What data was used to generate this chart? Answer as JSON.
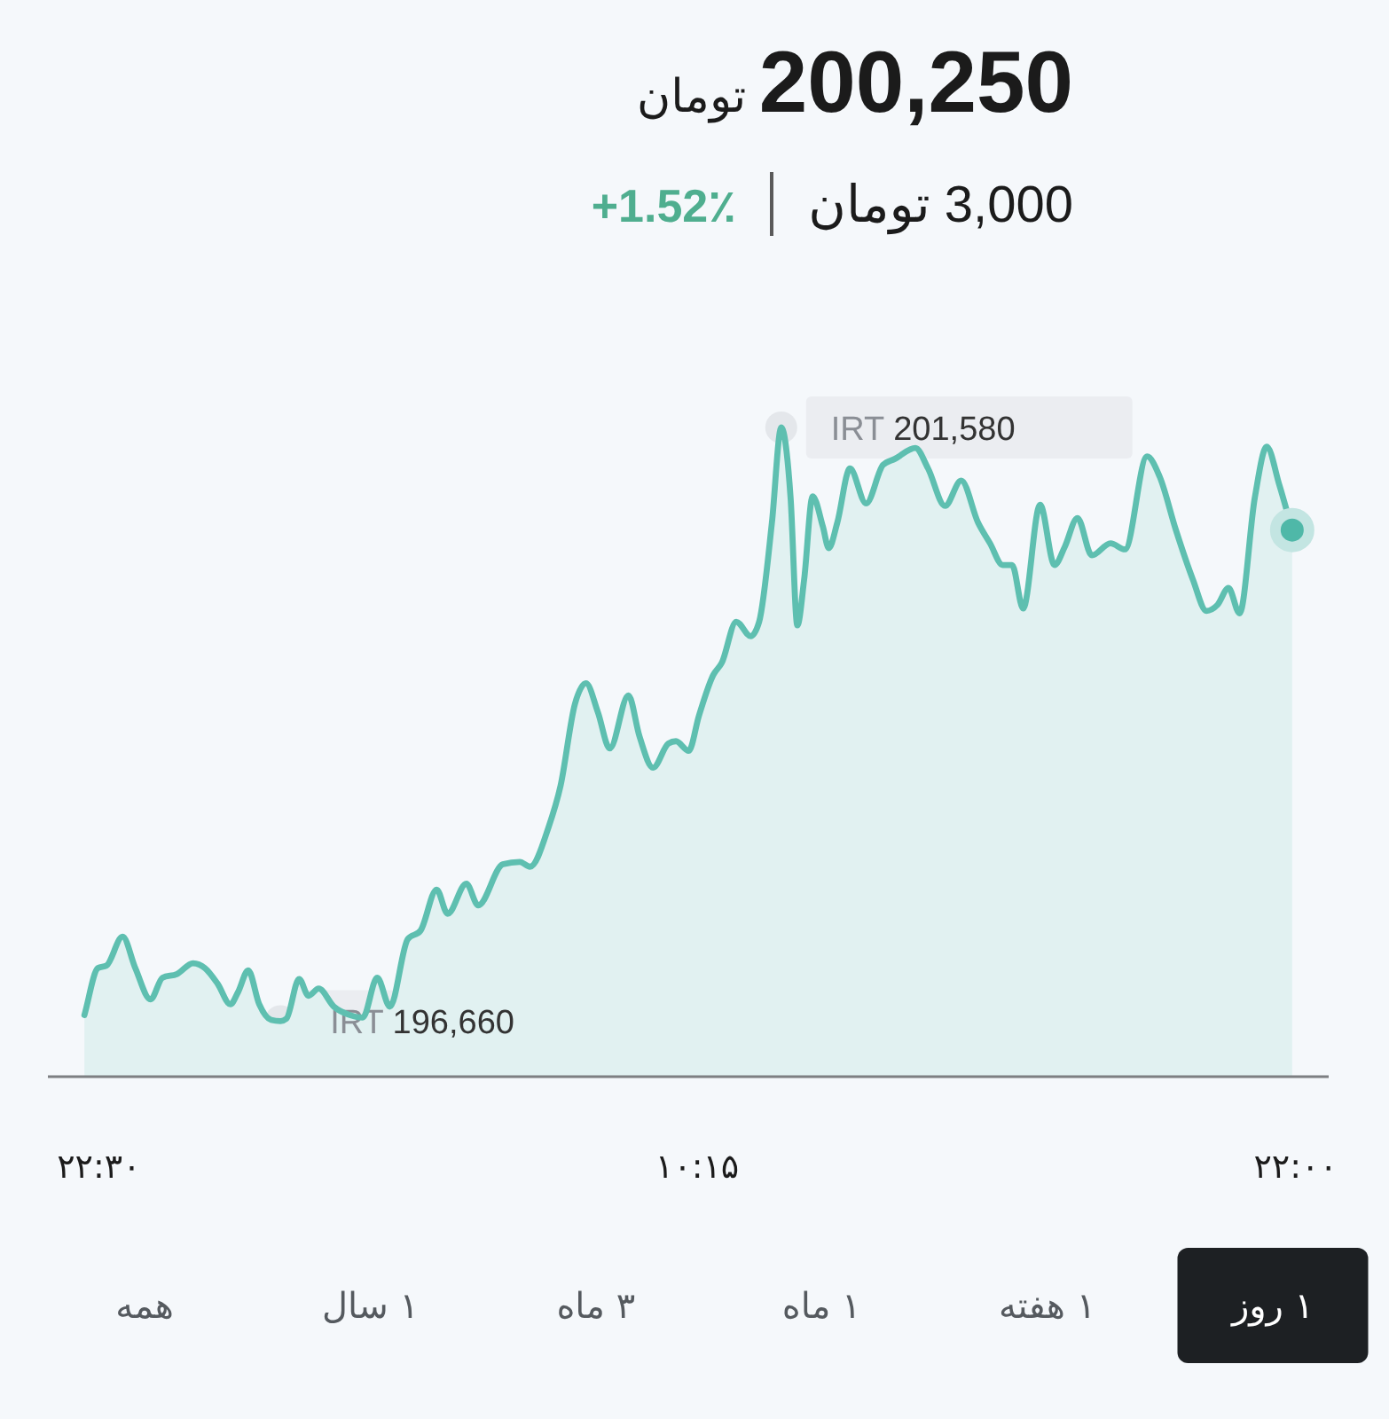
{
  "chart_data": {
    "type": "area",
    "title": "**200,250** تومان",
    "subtitle": "3,000 تومان",
    "x": [
      "--01-01T22:13",
      "--01-01T22:29",
      "--01-01T22:39",
      "--01-01T22:58",
      "--01-01T23:13",
      "--01-01T23:31",
      "--01-01T23:45",
      "--01-02T00:02",
      "--01-02T00:21",
      "--01-02T00:35",
      "--01-02T00:50",
      "--01-02T01:05",
      "--01-02T01:14",
      "--01-02T01:26",
      "--01-02T01:39",
      "--01-02T01:53",
      "--01-02T02:04",
      "--01-02T02:11",
      "--01-02T02:26",
      "--01-02T02:37",
      "--01-02T02:49",
      "--01-02T03:07",
      "--01-02T03:26",
      "--01-02T03:41",
      "--01-02T03:58",
      "--01-02T04:13",
      "--01-02T04:34",
      "--01-02T04:49",
      "--01-02T05:08",
      "--01-02T05:21",
      "--01-02T05:43",
      "--01-02T05:57",
      "--01-02T06:26",
      "--01-02T06:46",
      "--01-02T06:58",
      "--01-02T07:20",
      "--01-02T07:34",
      "--01-02T07:51",
      "--01-02T08:04",
      "--01-02T08:18",
      "--01-02T08:32",
      "--01-02T08:54",
      "--01-02T09:07",
      "--01-02T09:23",
      "--01-02T09:41",
      "--01-02T09:50",
      "--01-02T10:05",
      "--01-02T10:17",
      "--01-02T10:34",
      "--01-02T10:44",
      "--01-02T11:01",
      "--01-02T11:18",
      "--01-02T11:28",
      "--01-02T11:43",
      "--01-02T11:54",
      "--01-02T12:05",
      "--01-02T12:13",
      "--01-02T12:21",
      "--01-02T12:31",
      "--01-02T12:43",
      "--01-02T12:50",
      "--01-02T13:00",
      "--01-02T13:15",
      "--01-02T13:34",
      "--01-02T13:54",
      "--01-02T14:08",
      "--01-02T14:32",
      "--01-02T14:47",
      "--01-02T15:07",
      "--01-02T15:26",
      "--01-02T15:46",
      "--01-02T16:00",
      "--01-02T16:15",
      "--01-02T16:26",
      "--01-02T16:39",
      "--01-02T16:59",
      "--01-02T17:16",
      "--01-02T17:28",
      "--01-02T17:43",
      "--01-02T18:00",
      "--01-02T18:22",
      "--01-02T18:39",
      "--01-02T19:05",
      "--01-02T19:20",
      "--01-02T19:39",
      "--01-02T19:59",
      "--01-02T20:15",
      "--01-02T20:28",
      "--01-02T20:41",
      "--01-02T20:54",
      "--01-02T21:12",
      "--01-02T21:26",
      "--01-02T21:41",
      "--01-02T21:56"
    ],
    "series": [
      {
        "color": "#5ebfb0",
        "values": [
          196710,
          197100,
          197120,
          197360,
          197100,
          196840,
          197020,
          197050,
          197140,
          197100,
          196970,
          196800,
          196900,
          197080,
          196800,
          196670,
          196660,
          196680,
          197010,
          196870,
          196930,
          196780,
          196710,
          196690,
          197020,
          196780,
          197340,
          197410,
          197750,
          197550,
          197800,
          197620,
          197960,
          197980,
          197940,
          198270,
          198610,
          199290,
          199460,
          199220,
          198920,
          199360,
          199020,
          198760,
          198960,
          198980,
          198900,
          199190,
          199530,
          199630,
          199970,
          199850,
          199970,
          200790,
          201580,
          201000,
          199940,
          200320,
          201010,
          200760,
          200580,
          200790,
          201240,
          200950,
          201270,
          201320,
          201410,
          201240,
          200930,
          201140,
          200790,
          200620,
          200440,
          200440,
          200080,
          200940,
          200440,
          200590,
          200830,
          200520,
          200620,
          200570,
          201340,
          201170,
          200730,
          200320,
          200060,
          200110,
          200250,
          200040,
          201000,
          201420,
          201100,
          200730
        ],
        "value_labels": [
          null,
          null,
          null,
          null,
          null,
          null,
          null,
          null,
          null,
          null,
          null,
          null,
          null,
          null,
          null,
          null,
          "IRT 196,660",
          null,
          null,
          null,
          null,
          null,
          null,
          null,
          null,
          null,
          null,
          null,
          null,
          null,
          null,
          null,
          null,
          null,
          null,
          null,
          null,
          null,
          null,
          null,
          null,
          null,
          null,
          null,
          null,
          null,
          null,
          null,
          null,
          null,
          null,
          null,
          null,
          null,
          "IRT 201,580",
          null,
          null,
          null,
          null,
          null,
          null,
          null,
          null,
          null,
          null,
          null,
          null,
          null,
          null,
          null,
          null,
          null,
          null,
          null,
          null,
          null,
          null,
          null,
          null,
          null,
          null,
          null,
          null,
          null,
          null,
          null,
          null,
          null,
          null,
          null,
          null,
          null,
          null,
          null
        ]
      },
      {
        "type": "scatter",
        "color": "#4fb8a8",
        "marker": "circle",
        "x": [
          "--01-02T21:56"
        ],
        "values": [
          200730
        ]
      }
    ],
    "xlim": [
      "--01-01T21:30",
      "--01-02T22:39"
    ],
    "xticks": [
      {
        "value": "--01-01T22:30",
        "label": "۲۲:۳۰"
      },
      {
        "value": "--01-02T10:15",
        "label": "۱۰:۱۵"
      },
      {
        "value": "--01-02T22:00",
        "label": "۲۲:۰۰"
      }
    ],
    "tick_labels": "x",
    "annotations": [
      "+1.52٪",
      "۱ روز",
      "۱ هفته",
      "۱ ماه",
      "۳ ماه",
      "۱ سال",
      "همه"
    ]
  }
}
